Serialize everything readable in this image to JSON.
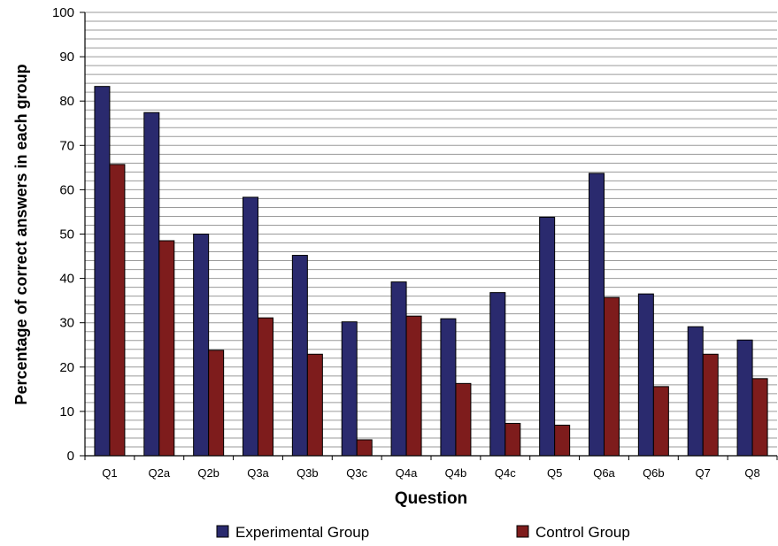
{
  "chart_data": {
    "type": "bar",
    "title": "",
    "xlabel": "Question",
    "ylabel": "Percentage of correct answers in each group",
    "ylim": [
      0,
      100
    ],
    "y_ticks": [
      0,
      10,
      20,
      30,
      40,
      50,
      60,
      70,
      80,
      90,
      100
    ],
    "minor_grid_step": 2,
    "grid": true,
    "legend_position": "bottom",
    "categories": [
      "Q1",
      "Q2a",
      "Q2b",
      "Q3a",
      "Q3b",
      "Q3c",
      "Q4a",
      "Q4b",
      "Q4c",
      "Q5",
      "Q6a",
      "Q6b",
      "Q7",
      "Q8"
    ],
    "series": [
      {
        "name": "Experimental Group",
        "color": "#2a2a6e",
        "values": [
          83.3,
          77.4,
          50.0,
          58.3,
          45.2,
          30.2,
          39.2,
          30.9,
          36.8,
          53.8,
          63.7,
          36.5,
          29.1,
          26.1
        ]
      },
      {
        "name": "Control Group",
        "color": "#7e1c1c",
        "values": [
          65.7,
          48.5,
          23.8,
          31.1,
          22.9,
          3.6,
          31.5,
          16.3,
          7.3,
          6.9,
          35.7,
          15.6,
          22.9,
          17.4
        ]
      }
    ]
  }
}
